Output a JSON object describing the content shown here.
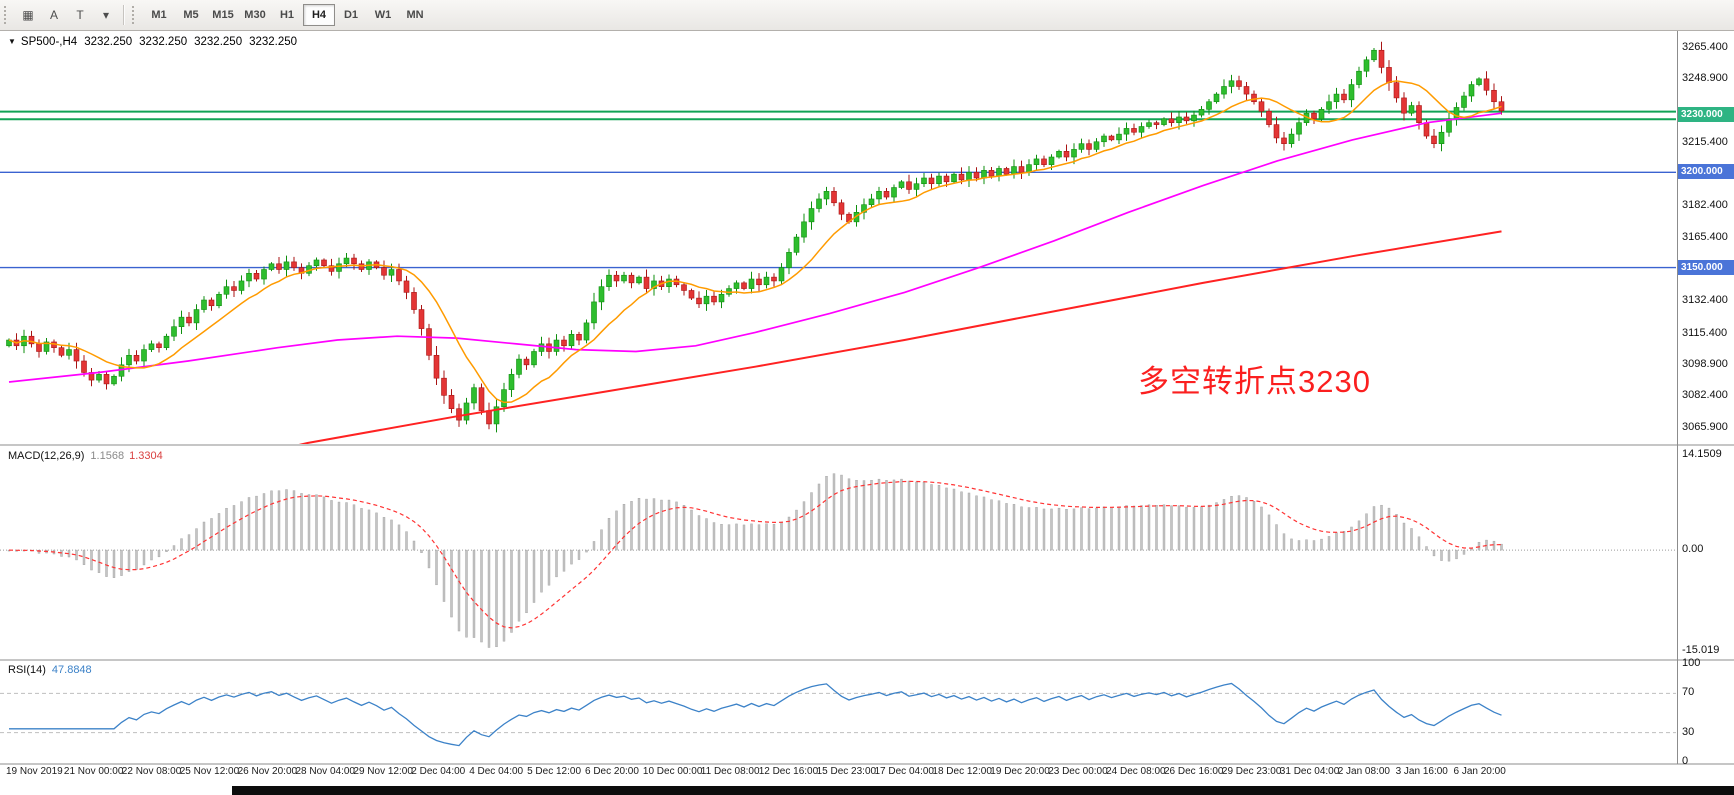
{
  "toolbar": {
    "icons": [
      {
        "name": "chart-grid-icon",
        "glyph": "▦"
      },
      {
        "name": "text-label-tool",
        "glyph": "A"
      },
      {
        "name": "drawing-tool",
        "glyph": "T"
      },
      {
        "name": "cursor-tool-dropdown",
        "glyph": "▾"
      }
    ],
    "timeframes": [
      "M1",
      "M5",
      "M15",
      "M30",
      "H1",
      "H4",
      "D1",
      "W1",
      "MN"
    ],
    "active_timeframe": "H4"
  },
  "chart": {
    "marker_glyph": "▼",
    "symbol_label": "SP500-,H4",
    "ohlc": [
      "3232.250",
      "3232.250",
      "3232.250",
      "3232.250"
    ],
    "annotation": {
      "text": "多空转折点3230"
    },
    "y_axis_labels": [
      {
        "text": "3265.400",
        "value": 3265.4
      },
      {
        "text": "3248.900",
        "value": 3248.9
      },
      {
        "text": "3215.400",
        "value": 3215.4
      },
      {
        "text": "3182.400",
        "value": 3182.4
      },
      {
        "text": "3165.400",
        "value": 3165.4
      },
      {
        "text": "3132.400",
        "value": 3132.4
      },
      {
        "text": "3115.400",
        "value": 3115.4
      },
      {
        "text": "3098.900",
        "value": 3098.9
      },
      {
        "text": "3082.400",
        "value": 3082.4
      },
      {
        "text": "3065.900",
        "value": 3065.9
      }
    ],
    "h_lines": [
      {
        "value": 3231.8,
        "color": "green",
        "width": 2
      },
      {
        "value": 3227.8,
        "color": "green",
        "width": 2
      },
      {
        "value": 3200.0,
        "color": "blue",
        "width": 1.4
      },
      {
        "value": 3150.0,
        "color": "blue",
        "width": 1.4
      }
    ],
    "badges": [
      {
        "text": "3230.000",
        "value": 3230.0,
        "type": "green"
      },
      {
        "text": "3200.000",
        "value": 3200.0,
        "type": "blue"
      },
      {
        "text": "3150.000",
        "value": 3150.0,
        "type": "blue"
      }
    ],
    "price_range": {
      "top": 3272,
      "bottom": 3058
    }
  },
  "macd": {
    "label": "MACD(12,26,9)",
    "value_main": "1.1568",
    "value_signal": "1.3304",
    "axis_labels": [
      {
        "text": "14.1509",
        "value": 14.1509
      },
      {
        "text": "0.00",
        "value": 0
      },
      {
        "text": "-15.019",
        "value": -15.019
      }
    ],
    "range": {
      "top": 14.1509,
      "bottom": -15.019
    }
  },
  "rsi": {
    "label": "RSI(14)",
    "value": "47.8848",
    "axis_labels": [
      {
        "text": "100",
        "value": 100
      },
      {
        "text": "70",
        "value": 70
      },
      {
        "text": "30",
        "value": 30
      },
      {
        "text": "0",
        "value": 0
      }
    ],
    "levels": [
      70,
      30
    ],
    "range": [
      0,
      100
    ]
  },
  "x_axis": {
    "labels": [
      "19 Nov 2019",
      "21 Nov 00:00",
      "22 Nov 08:00",
      "25 Nov 12:00",
      "26 Nov 20:00",
      "28 Nov 04:00",
      "29 Nov 12:00",
      "2 Dec 04:00",
      "4 Dec 04:00",
      "5 Dec 12:00",
      "6 Dec 20:00",
      "10 Dec 00:00",
      "11 Dec 08:00",
      "12 Dec 16:00",
      "15 Dec 23:00",
      "17 Dec 04:00",
      "18 Dec 12:00",
      "19 Dec 20:00",
      "23 Dec 00:00",
      "24 Dec 08:00",
      "26 Dec 16:00",
      "29 Dec 23:00",
      "31 Dec 04:00",
      "2 Jan 08:00",
      "3 Jan 16:00",
      "6 Jan 20:00"
    ]
  },
  "chart_data": {
    "type": "candlestick",
    "symbol": "SP500-",
    "timeframe": "H4",
    "title": "SP500-,H4 3232.250 3232.250 3232.250 3232.250",
    "y_range": [
      3058,
      3272
    ],
    "closes": [
      3112,
      3109,
      3114,
      3110,
      3106,
      3111,
      3108,
      3104,
      3107,
      3101,
      3095,
      3091,
      3094,
      3089,
      3093,
      3099,
      3104,
      3101,
      3107,
      3110,
      3108,
      3114,
      3119,
      3124,
      3121,
      3128,
      3133,
      3130,
      3136,
      3140,
      3138,
      3143,
      3147,
      3144,
      3149,
      3152,
      3149,
      3153,
      3150,
      3147,
      3151,
      3154,
      3151,
      3148,
      3152,
      3155,
      3152,
      3149,
      3153,
      3150,
      3146,
      3149,
      3143,
      3137,
      3128,
      3118,
      3104,
      3092,
      3083,
      3076,
      3070,
      3079,
      3087,
      3075,
      3068,
      3077,
      3086,
      3094,
      3102,
      3099,
      3106,
      3110,
      3106,
      3112,
      3109,
      3115,
      3112,
      3121,
      3132,
      3140,
      3146,
      3143,
      3146,
      3142,
      3145,
      3139,
      3143,
      3140,
      3144,
      3141,
      3138,
      3134,
      3131,
      3135,
      3132,
      3136,
      3139,
      3142,
      3139,
      3144,
      3141,
      3145,
      3143,
      3150,
      3158,
      3166,
      3174,
      3181,
      3186,
      3190,
      3184,
      3178,
      3174,
      3179,
      3183,
      3186,
      3190,
      3187,
      3192,
      3195,
      3191,
      3194,
      3197,
      3194,
      3198,
      3195,
      3199,
      3196,
      3200,
      3197,
      3201,
      3198,
      3202,
      3199,
      3203,
      3200,
      3204,
      3207,
      3204,
      3208,
      3211,
      3208,
      3212,
      3215,
      3212,
      3216,
      3219,
      3217,
      3220,
      3223,
      3221,
      3224,
      3226,
      3225,
      3228,
      3226,
      3229,
      3227,
      3230,
      3233,
      3237,
      3241,
      3245,
      3248,
      3245,
      3241,
      3237,
      3232,
      3225,
      3218,
      3215,
      3220,
      3226,
      3231,
      3228,
      3233,
      3237,
      3241,
      3238,
      3246,
      3253,
      3259,
      3264,
      3255,
      3247,
      3239,
      3231,
      3235,
      3226,
      3219,
      3215,
      3221,
      3228,
      3234,
      3240,
      3246,
      3249,
      3243,
      3237,
      3232.25
    ],
    "overlays": {
      "sma_fast_period": 10,
      "magenta_ma_points": [
        [
          0,
          3090
        ],
        [
          0.06,
          3095
        ],
        [
          0.12,
          3101
        ],
        [
          0.18,
          3108
        ],
        [
          0.22,
          3112
        ],
        [
          0.26,
          3114
        ],
        [
          0.3,
          3113
        ],
        [
          0.34,
          3110
        ],
        [
          0.38,
          3107
        ],
        [
          0.42,
          3106
        ],
        [
          0.46,
          3109
        ],
        [
          0.5,
          3116
        ],
        [
          0.55,
          3126
        ],
        [
          0.6,
          3137
        ],
        [
          0.65,
          3150
        ],
        [
          0.7,
          3164
        ],
        [
          0.75,
          3179
        ],
        [
          0.8,
          3193
        ],
        [
          0.85,
          3206
        ],
        [
          0.9,
          3217
        ],
        [
          0.95,
          3226
        ],
        [
          1,
          3231
        ]
      ],
      "red_ma_points": [
        [
          0,
          3020
        ],
        [
          0.1,
          3040
        ],
        [
          0.2,
          3058
        ],
        [
          0.3,
          3072
        ],
        [
          0.4,
          3085
        ],
        [
          0.5,
          3098
        ],
        [
          0.6,
          3112
        ],
        [
          0.7,
          3127
        ],
        [
          0.8,
          3142
        ],
        [
          0.9,
          3156
        ],
        [
          1,
          3169
        ]
      ]
    },
    "indicators": {
      "macd": {
        "fast": 12,
        "slow": 26,
        "signal": 9,
        "current_main": 1.1568,
        "current_signal": 1.3304,
        "axis_range": [
          -15.019,
          14.1509
        ]
      },
      "rsi": {
        "period": 14,
        "current": 47.8848,
        "axis_range": [
          0,
          100
        ],
        "levels": [
          30,
          70
        ]
      }
    }
  },
  "colors": {
    "up": "#2ebd2e",
    "up_stroke": "#0f8f0f",
    "down": "#e33535",
    "down_stroke": "#a81414",
    "ma_fast": "#ff9b00",
    "ma_mid": "#ff00ff",
    "ma_slow": "#ff2222",
    "hline_green": "#12a356",
    "hline_blue": "#3a62d0",
    "badge_green": "#2eb483",
    "badge_blue": "#4a74d8",
    "macd_hist": "#c4c4c4",
    "macd_hist_stroke": "#9e9e9e",
    "macd_signal": "#ff3333",
    "rsi_line": "#3c82c8",
    "annotation": "#fb1f1f"
  }
}
